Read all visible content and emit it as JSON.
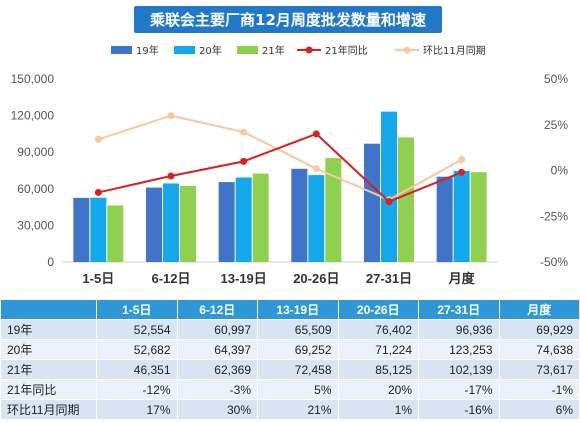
{
  "colors": {
    "title_bg": "#1f78c8",
    "s19": "#3f74c9",
    "s20": "#13a8ec",
    "s21": "#8fd14f",
    "yoy": "#d91f1f",
    "mom": "#f8c79e",
    "table_header": "#2e97d8"
  },
  "chart_data": {
    "type": "bar",
    "title": "乘联会主要厂商12月周度批发数量和增速",
    "categories": [
      "1-5日",
      "6-12日",
      "13-19日",
      "20-26日",
      "27-31日",
      "月度"
    ],
    "series": [
      {
        "name": "19年",
        "type": "bar",
        "axis": "left",
        "values": [
          52554,
          60997,
          65509,
          76402,
          96936,
          69929
        ]
      },
      {
        "name": "20年",
        "type": "bar",
        "axis": "left",
        "values": [
          52682,
          64397,
          69252,
          71224,
          123253,
          74638
        ]
      },
      {
        "name": "21年",
        "type": "bar",
        "axis": "left",
        "values": [
          46351,
          62369,
          72458,
          85125,
          102139,
          73617
        ]
      },
      {
        "name": "21年同比",
        "type": "line",
        "axis": "right",
        "values": [
          -12,
          -3,
          5,
          20,
          -17,
          -1
        ]
      },
      {
        "name": "环比11月同期",
        "type": "line",
        "axis": "right",
        "values": [
          17,
          30,
          21,
          1,
          -16,
          6
        ]
      }
    ],
    "y_left": {
      "min": 0,
      "max": 150000,
      "ticks": [
        "0",
        "30,000",
        "60,000",
        "90,000",
        "120,000",
        "150,000"
      ]
    },
    "y_right": {
      "min": -50,
      "max": 50,
      "ticks": [
        "-50%",
        "-25%",
        "0%",
        "25%",
        "50%"
      ]
    },
    "grid": false,
    "legend_position": "top"
  },
  "table": {
    "header": [
      "",
      "1-5日",
      "6-12日",
      "13-19日",
      "20-26日",
      "27-31日",
      "月度"
    ],
    "rows": [
      [
        "19年",
        "52,554",
        "60,997",
        "65,509",
        "76,402",
        "96,936",
        "69,929"
      ],
      [
        "20年",
        "52,682",
        "64,397",
        "69,252",
        "71,224",
        "123,253",
        "74,638"
      ],
      [
        "21年",
        "46,351",
        "62,369",
        "72,458",
        "85,125",
        "102,139",
        "73,617"
      ],
      [
        "21年同比",
        "-12%",
        "-3%",
        "5%",
        "20%",
        "-17%",
        "-1%"
      ],
      [
        "环比11月同期",
        "17%",
        "30%",
        "21%",
        "1%",
        "-16%",
        "6%"
      ]
    ]
  }
}
